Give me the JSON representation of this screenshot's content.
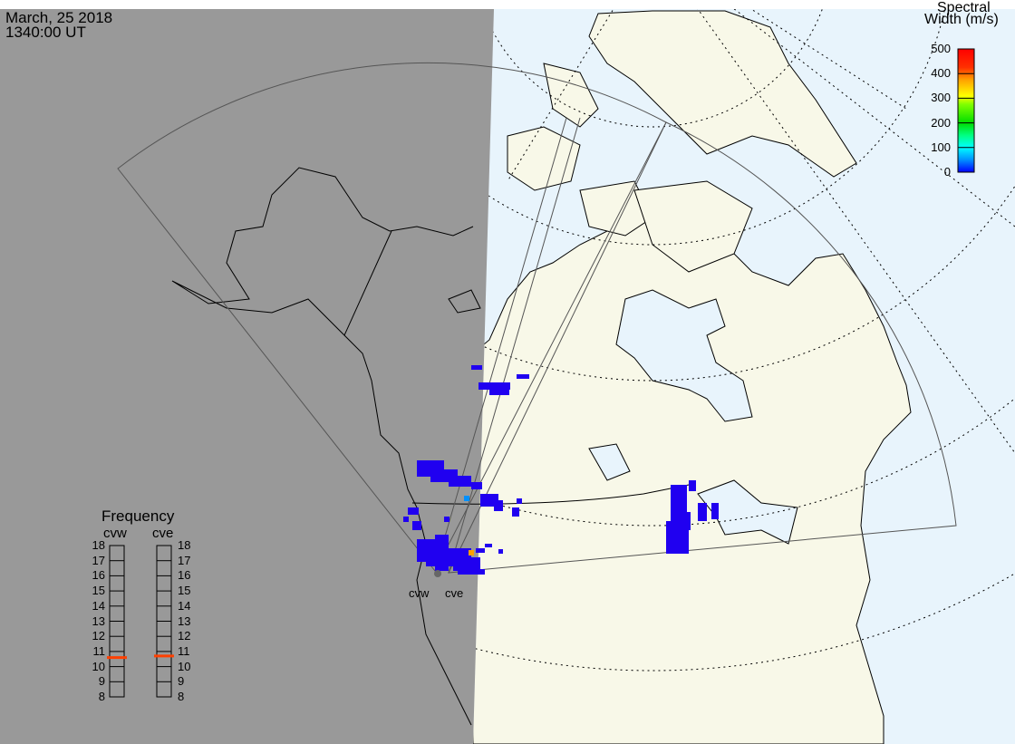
{
  "header": {
    "date": "March, 25 2018",
    "time": "1340:00 UT"
  },
  "colorbar": {
    "title_line1": "Spectral",
    "title_line2": "Width (m/s)",
    "ticks": [
      "500",
      "400",
      "300",
      "200",
      "100",
      "0"
    ],
    "range": [
      0,
      500
    ],
    "colors": [
      "#0000ff",
      "#00a0ff",
      "#00ffff",
      "#00ff80",
      "#00dd00",
      "#80ff00",
      "#ffff00",
      "#ffa000",
      "#ff5000",
      "#ff0000"
    ]
  },
  "frequency": {
    "title": "Frequency",
    "radars": [
      {
        "name": "cvw",
        "value_mhz": 10.6
      },
      {
        "name": "cve",
        "value_mhz": 10.7
      }
    ],
    "ticks": [
      "18",
      "17",
      "16",
      "15",
      "14",
      "13",
      "12",
      "11",
      "10",
      "9",
      "8"
    ],
    "range": [
      8,
      18
    ],
    "marker_color": "#ff4000"
  },
  "radar_labels": {
    "cvw": "cvw",
    "cve": "cve"
  },
  "colors": {
    "night": "#999999",
    "land": "#f8f8e8",
    "ocean": "#e8f4fc",
    "echo": "#2000f0"
  }
}
